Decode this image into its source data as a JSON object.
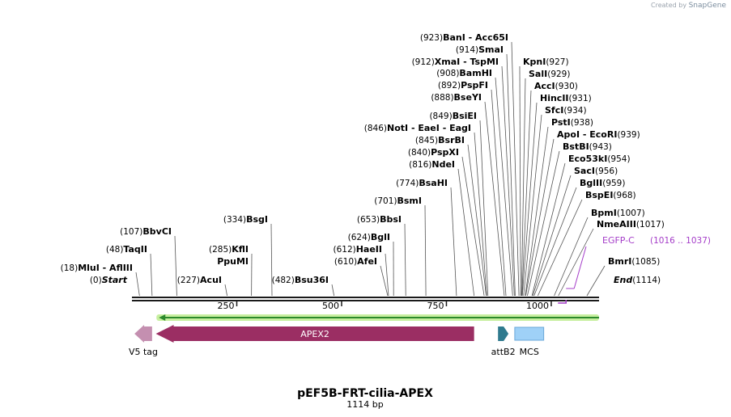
{
  "branding": {
    "prefix": "Created by",
    "name": "SnapGene"
  },
  "map": {
    "name": "pEF5B-FRT-cilia-APEX",
    "length_label": "1114 bp",
    "length": 1114
  },
  "ruler": {
    "ticks": [
      250,
      500,
      750,
      1000
    ]
  },
  "sites": [
    {
      "pos": "(0)",
      "name": "Start",
      "bp": 0,
      "italic": true
    },
    {
      "pos": "(18)",
      "name": "MluI",
      "alt": "AflIII",
      "bp": 18
    },
    {
      "pos": "(48)",
      "name": "TaqII",
      "bp": 48
    },
    {
      "pos": "(107)",
      "name": "BbvCI",
      "bp": 107
    },
    {
      "pos": "(227)",
      "name": "AcuI",
      "bp": 227
    },
    {
      "pos": "(285)",
      "name": "KflI",
      "extra": "PpuMI",
      "bp": 285
    },
    {
      "pos": "(334)",
      "name": "BsgI",
      "bp": 334
    },
    {
      "pos": "(482)",
      "name": "Bsu36I",
      "bp": 482
    },
    {
      "pos": "(610)",
      "name": "AfeI",
      "bp": 610
    },
    {
      "pos": "(612)",
      "name": "HaeII",
      "bp": 612
    },
    {
      "pos": "(624)",
      "name": "BglI",
      "bp": 624
    },
    {
      "pos": "(653)",
      "name": "BbsI",
      "bp": 653
    },
    {
      "pos": "(701)",
      "name": "BsmI",
      "bp": 701
    },
    {
      "pos": "(774)",
      "name": "BsaHI",
      "bp": 774
    },
    {
      "pos": "(816)",
      "name": "NdeI",
      "bp": 816
    },
    {
      "pos": "(840)",
      "name": "PspXI",
      "bp": 840
    },
    {
      "pos": "(845)",
      "name": "BsrBI",
      "bp": 845
    },
    {
      "pos": "(846)",
      "name": "NotI",
      "alt": "EaeI",
      "alt2": "EagI",
      "bp": 846
    },
    {
      "pos": "(849)",
      "name": "BsiEI",
      "bp": 849
    },
    {
      "pos": "(888)",
      "name": "BseYI",
      "bp": 888
    },
    {
      "pos": "(892)",
      "name": "PspFI",
      "bp": 892
    },
    {
      "pos": "(908)",
      "name": "BamHI",
      "bp": 908
    },
    {
      "pos": "(912)",
      "name": "XmaI",
      "alt": "TspMI",
      "bp": 912
    },
    {
      "pos": "(914)",
      "name": "SmaI",
      "bp": 914
    },
    {
      "pos": "(923)",
      "name": "BanI",
      "alt": "Acc65I",
      "bp": 923
    },
    {
      "pos": "(927)",
      "name": "KpnI",
      "bp": 927
    },
    {
      "pos": "(929)",
      "name": "SalI",
      "bp": 929
    },
    {
      "pos": "(930)",
      "name": "AccI",
      "bp": 930
    },
    {
      "pos": "(931)",
      "name": "HincII",
      "bp": 931
    },
    {
      "pos": "(934)",
      "name": "SfcI",
      "bp": 934
    },
    {
      "pos": "(938)",
      "name": "PstI",
      "bp": 938
    },
    {
      "pos": "(939)",
      "name": "ApoI",
      "alt": "EcoRI",
      "bp": 939
    },
    {
      "pos": "(943)",
      "name": "BstBI",
      "bp": 943
    },
    {
      "pos": "(954)",
      "name": "Eco53kI",
      "bp": 954
    },
    {
      "pos": "(956)",
      "name": "SacI",
      "bp": 956
    },
    {
      "pos": "(959)",
      "name": "BglII",
      "bp": 959
    },
    {
      "pos": "(968)",
      "name": "BspEI",
      "bp": 968
    },
    {
      "pos": "(1007)",
      "name": "BpmI",
      "bp": 1007
    },
    {
      "pos": "(1017)",
      "name": "NmeAIII",
      "bp": 1017
    },
    {
      "pos": "(1085)",
      "name": "BmrI",
      "bp": 1085
    },
    {
      "pos": "(1114)",
      "name": "End",
      "bp": 1114,
      "italic": true
    }
  ],
  "primer": {
    "name": "EGFP-C",
    "range": "(1016 .. 1037)",
    "start": 1016,
    "end": 1037,
    "color": "#a43cc8"
  },
  "features": [
    {
      "name": "V5 tag",
      "start": 6,
      "end": 48,
      "direction": "reverse",
      "color": "#c48fb0",
      "label_inside": false
    },
    {
      "name": "APEX2",
      "start": 57,
      "end": 816,
      "direction": "reverse",
      "color": "#9b2e63",
      "label_inside": true
    },
    {
      "name": "attB2",
      "start": 873,
      "end": 898,
      "direction": "forward",
      "color": "#2f7a8e",
      "label_inside": false
    },
    {
      "name": "MCS",
      "start": 913,
      "end": 982,
      "direction": "none",
      "color": "#9fd1f7",
      "label_inside": false
    }
  ],
  "orf": {
    "start": 70,
    "end": 1114,
    "direction": "reverse",
    "color": "#2c8a2c",
    "glow": "#c7ef9f"
  },
  "colors": {
    "backbone": "#1a1a1a",
    "text": "#000000",
    "line": "#555555"
  }
}
